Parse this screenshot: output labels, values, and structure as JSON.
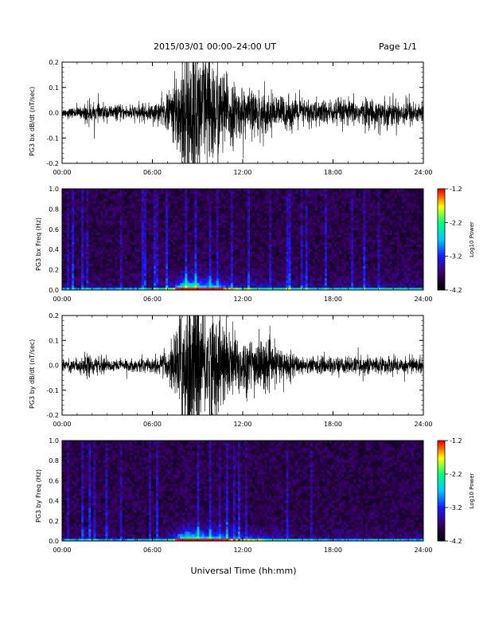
{
  "header": {
    "title": "2015/03/01   00:00–24:00 UT",
    "page": "Page 1/1"
  },
  "xlabel": "Universal Time (hh:mm)",
  "colors": {
    "trace": "#000000",
    "spectrogram_colormap": [
      "#000000",
      "#3a0066",
      "#1a1aff",
      "#00c8ff",
      "#00ff80",
      "#ffff00",
      "#ff0000"
    ]
  },
  "chart_data": [
    {
      "type": "line",
      "ylabel": "PG3 bx dB/dt (nT/sec)",
      "xlim": [
        0,
        24
      ],
      "ylim": [
        -0.2,
        0.2
      ],
      "x_ticks": [
        "00:00",
        "06:00",
        "12:00",
        "18:00",
        "24:00"
      ],
      "y_ticks": [
        "-0.2",
        "-0.1",
        "0.0",
        "0.1",
        "0.2"
      ],
      "envelope": {
        "hours": [
          0,
          1.4,
          1.6,
          2,
          4,
          6,
          7,
          7.5,
          8,
          8.5,
          9,
          9.5,
          10,
          10.5,
          11,
          11.5,
          12,
          13,
          14,
          16,
          18,
          20,
          22,
          24
        ],
        "amplitude": [
          0.015,
          0.02,
          0.045,
          0.03,
          0.025,
          0.03,
          0.06,
          0.12,
          0.25,
          0.3,
          0.25,
          0.22,
          0.2,
          0.18,
          0.12,
          0.1,
          0.08,
          0.08,
          0.06,
          0.05,
          0.045,
          0.045,
          0.05,
          0.04
        ]
      }
    },
    {
      "type": "heatmap",
      "ylabel": "PG3 bx Freq (Hz)",
      "xlim": [
        0,
        24
      ],
      "ylim": [
        0,
        1.0
      ],
      "x_ticks": [
        "00:00",
        "06:00",
        "12:00",
        "18:00",
        "24:00"
      ],
      "y_ticks": [
        "0.0",
        "0.2",
        "0.4",
        "0.6",
        "0.8",
        "1.0"
      ],
      "colorbar": {
        "label": "Log10 Power",
        "ticks": [
          "-1.2",
          "-2.2",
          "-3.2",
          "-4.2"
        ],
        "range": [
          -4.2,
          -1.2
        ]
      }
    },
    {
      "type": "line",
      "ylabel": "PG3 by dB/dt (nT/sec)",
      "xlim": [
        0,
        24
      ],
      "ylim": [
        -0.2,
        0.2
      ],
      "x_ticks": [
        "00:00",
        "06:00",
        "12:00",
        "18:00",
        "24:00"
      ],
      "y_ticks": [
        "-0.2",
        "-0.1",
        "0.0",
        "0.1",
        "0.2"
      ],
      "envelope": {
        "hours": [
          0,
          1.4,
          1.6,
          2,
          4,
          6,
          7,
          7.5,
          8,
          8.5,
          9,
          9.5,
          10,
          10.5,
          11,
          11.5,
          12,
          13,
          14,
          16,
          18,
          20,
          22,
          24
        ],
        "amplitude": [
          0.02,
          0.03,
          0.05,
          0.03,
          0.02,
          0.025,
          0.05,
          0.12,
          0.25,
          0.3,
          0.25,
          0.22,
          0.2,
          0.18,
          0.14,
          0.12,
          0.1,
          0.1,
          0.07,
          0.03,
          0.03,
          0.03,
          0.03,
          0.03
        ]
      }
    },
    {
      "type": "heatmap",
      "ylabel": "PG3 by Freq (Hz)",
      "xlim": [
        0,
        24
      ],
      "ylim": [
        0,
        1.0
      ],
      "x_ticks": [
        "00:00",
        "06:00",
        "12:00",
        "18:00",
        "24:00"
      ],
      "y_ticks": [
        "0.0",
        "0.2",
        "0.4",
        "0.6",
        "0.8",
        "1.0"
      ],
      "colorbar": {
        "label": "Log10 Power",
        "ticks": [
          "-1.2",
          "-2.2",
          "-3.2",
          "-4.2"
        ],
        "range": [
          -4.2,
          -1.2
        ]
      }
    }
  ]
}
